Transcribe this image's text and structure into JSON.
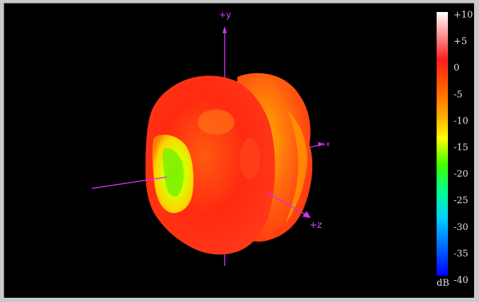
{
  "axes": {
    "y_label": "+y",
    "x_label": "+x",
    "z_label": "+z",
    "color": "#cc33ee"
  },
  "colorbar": {
    "unit": "dB",
    "ticks": [
      "+10",
      "+5",
      "0",
      "-5",
      "-10",
      "-15",
      "-20",
      "-25",
      "-30",
      "-35",
      "-40"
    ],
    "colors": [
      "#ffffff",
      "#ff2020",
      "#ff7000",
      "#ffe000",
      "#40ff00",
      "#00ff90",
      "#00c0ff",
      "#0000ff"
    ]
  },
  "plot": {
    "background": "#000000"
  }
}
